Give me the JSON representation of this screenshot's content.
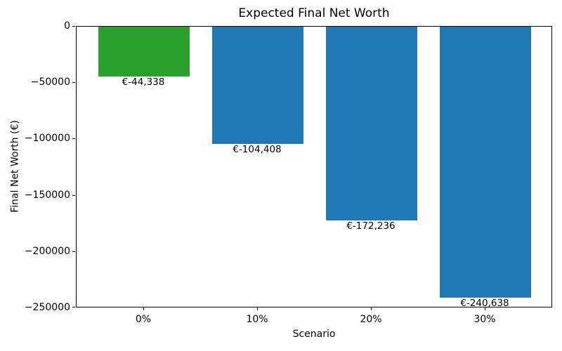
{
  "chart_data": {
    "type": "bar",
    "title": "Expected Final Net Worth",
    "xlabel": "Scenario",
    "ylabel": "Final Net Worth (€)",
    "categories": [
      "0%",
      "10%",
      "20%",
      "30%"
    ],
    "values": [
      -44338,
      -104408,
      -172236,
      -240638
    ],
    "bar_labels": [
      "€-44,338",
      "€-104,408",
      "€-172,236",
      "€-240,638"
    ],
    "bar_colors": [
      "#2ca02c",
      "#1f77b4",
      "#1f77b4",
      "#1f77b4"
    ],
    "yticks": [
      0,
      -50000,
      -100000,
      -150000,
      -200000,
      -250000
    ],
    "ytick_labels": [
      "0",
      "−50000",
      "−100000",
      "−150000",
      "−200000",
      "−250000"
    ],
    "ylim": [
      -250000,
      0
    ],
    "grid": false,
    "legend_position": "none",
    "background_color": "#ffffff",
    "text_color": "#000000"
  }
}
